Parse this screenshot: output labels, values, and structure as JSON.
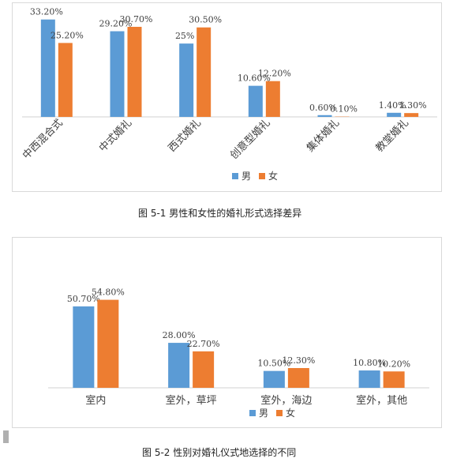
{
  "figures": [
    {
      "caption": "图 5-1  男性和女性的婚礼形式选择差异",
      "chart_data": {
        "type": "bar",
        "categories": [
          "中西混合式",
          "中式婚礼",
          "西式婚礼",
          "创意型婚礼",
          "集体婚礼",
          "教堂婚礼"
        ],
        "series": [
          {
            "name": "男",
            "values": [
              33.2,
              29.2,
              25.0,
              10.6,
              0.6,
              1.4
            ],
            "labels": [
              "33.20%",
              "29.20%",
              "25%",
              "10.60%",
              "0.60%",
              "1.40%"
            ],
            "color": "#5b9bd5"
          },
          {
            "name": "女",
            "values": [
              25.2,
              30.7,
              30.5,
              12.2,
              0.1,
              1.3
            ],
            "labels": [
              "25.20%",
              "30.70%",
              "30.50%",
              "12.20%",
              "0.10%",
              "1.30%"
            ],
            "color": "#ed7d31"
          }
        ],
        "ylim": [
          0,
          35
        ],
        "grid": false,
        "legend": "bottom"
      }
    },
    {
      "caption": "图 5-2  性别对婚礼仪式地选择的不同",
      "chart_data": {
        "type": "bar",
        "categories": [
          "室内",
          "室外，草坪",
          "室外，海边",
          "室外，其他"
        ],
        "series": [
          {
            "name": "男",
            "values": [
              50.7,
              28.0,
              10.5,
              10.8
            ],
            "labels": [
              "50.70%",
              "28.00%",
              "10.50%",
              "10.80%"
            ],
            "color": "#5b9bd5"
          },
          {
            "name": "女",
            "values": [
              54.8,
              22.7,
              12.3,
              10.2
            ],
            "labels": [
              "54.80%",
              "22.70%",
              "12.30%",
              "10.20%"
            ],
            "color": "#ed7d31"
          }
        ],
        "ylim": [
          0,
          60
        ],
        "grid": false,
        "legend": "bottom"
      }
    }
  ]
}
